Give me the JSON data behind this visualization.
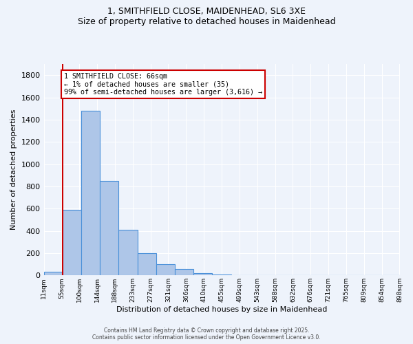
{
  "title_line1": "1, SMITHFIELD CLOSE, MAIDENHEAD, SL6 3XE",
  "title_line2": "Size of property relative to detached houses in Maidenhead",
  "xlabel": "Distribution of detached houses by size in Maidenhead",
  "ylabel": "Number of detached properties",
  "bar_values": [
    35,
    590,
    1480,
    850,
    410,
    200,
    100,
    55,
    20,
    5,
    2,
    0,
    1,
    0,
    0,
    1,
    0,
    0,
    0
  ],
  "bar_color": "#aec6e8",
  "bar_edge_color": "#4a90d9",
  "tick_labels": [
    "11sqm",
    "55sqm",
    "100sqm",
    "144sqm",
    "188sqm",
    "233sqm",
    "277sqm",
    "321sqm",
    "366sqm",
    "410sqm",
    "455sqm",
    "499sqm",
    "543sqm",
    "588sqm",
    "632sqm",
    "676sqm",
    "721sqm",
    "765sqm",
    "809sqm",
    "854sqm",
    "898sqm"
  ],
  "ylim": [
    0,
    1900
  ],
  "yticks": [
    0,
    200,
    400,
    600,
    800,
    1000,
    1200,
    1400,
    1600,
    1800
  ],
  "red_line_x": 0.5,
  "background_color": "#eef3fb",
  "grid_color": "#ffffff",
  "annotation_text": "1 SMITHFIELD CLOSE: 66sqm\n← 1% of detached houses are smaller (35)\n99% of semi-detached houses are larger (3,616) →",
  "annotation_box_color": "#ffffff",
  "annotation_box_edge": "#cc0000",
  "footer_line1": "Contains HM Land Registry data © Crown copyright and database right 2025.",
  "footer_line2": "Contains public sector information licensed under the Open Government Licence v3.0."
}
